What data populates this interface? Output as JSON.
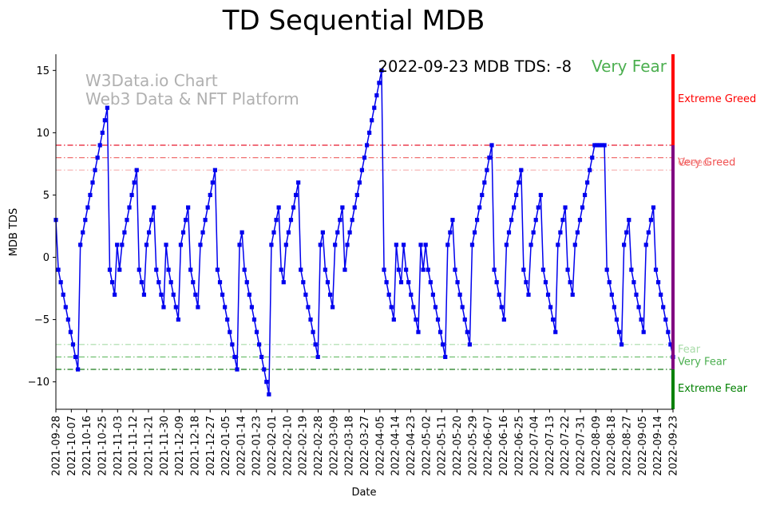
{
  "chart_data": {
    "type": "line",
    "title": "TD Sequential MDB",
    "xlabel": "Date",
    "ylabel": "MDB TDS",
    "ylim": [
      -12.2,
      16.3
    ],
    "yticks": [
      -10,
      -5,
      0,
      5,
      10,
      15
    ],
    "xticks": [
      "2021-09-28",
      "2021-10-07",
      "2021-10-16",
      "2021-10-25",
      "2021-11-03",
      "2021-11-12",
      "2021-11-21",
      "2021-11-30",
      "2021-12-09",
      "2021-12-18",
      "2021-12-27",
      "2022-01-05",
      "2022-01-14",
      "2022-01-23",
      "2022-02-01",
      "2022-02-10",
      "2022-02-19",
      "2022-02-28",
      "2022-03-09",
      "2022-03-18",
      "2022-03-27",
      "2022-04-05",
      "2022-04-14",
      "2022-04-23",
      "2022-05-02",
      "2022-05-11",
      "2022-05-20",
      "2022-05-29",
      "2022-06-07",
      "2022-06-16",
      "2022-06-25",
      "2022-07-04",
      "2022-07-13",
      "2022-07-22",
      "2022-07-31",
      "2022-08-09",
      "2022-08-18",
      "2022-08-27",
      "2022-09-05",
      "2022-09-14",
      "2022-09-23"
    ],
    "watermark": [
      "W3Data.io Chart",
      "Web3 Data & NFT Platform"
    ],
    "annotation": {
      "text": "2022-09-23 MDB TDS: -8",
      "status": "Very Fear",
      "status_color": "#4caf50"
    },
    "series": [
      {
        "name": "MDB TDS",
        "color": "#0000ee",
        "values": [
          3,
          -1,
          -2,
          -3,
          -4,
          -5,
          -6,
          -7,
          -8,
          -9,
          1,
          2,
          3,
          4,
          5,
          6,
          7,
          8,
          9,
          10,
          11,
          12,
          -1,
          -2,
          -3,
          1,
          -1,
          1,
          2,
          3,
          4,
          5,
          6,
          7,
          -1,
          -2,
          -3,
          1,
          2,
          3,
          4,
          -1,
          -2,
          -3,
          -4,
          1,
          -1,
          -2,
          -3,
          -4,
          -5,
          1,
          2,
          3,
          4,
          -1,
          -2,
          -3,
          -4,
          1,
          2,
          3,
          4,
          5,
          6,
          7,
          -1,
          -2,
          -3,
          -4,
          -5,
          -6,
          -7,
          -8,
          -9,
          1,
          2,
          -1,
          -2,
          -3,
          -4,
          -5,
          -6,
          -7,
          -8,
          -9,
          -10,
          -11,
          1,
          2,
          3,
          4,
          -1,
          -2,
          1,
          2,
          3,
          4,
          5,
          6,
          -1,
          -2,
          -3,
          -4,
          -5,
          -6,
          -7,
          -8,
          1,
          2,
          -1,
          -2,
          -3,
          -4,
          1,
          2,
          3,
          4,
          -1,
          1,
          2,
          3,
          4,
          5,
          6,
          7,
          8,
          9,
          10,
          11,
          12,
          13,
          14,
          15,
          -1,
          -2,
          -3,
          -4,
          -5,
          1,
          -1,
          -2,
          1,
          -1,
          -2,
          -3,
          -4,
          -5,
          -6,
          1,
          -1,
          1,
          -1,
          -2,
          -3,
          -4,
          -5,
          -6,
          -7,
          -8,
          1,
          2,
          3,
          -1,
          -2,
          -3,
          -4,
          -5,
          -6,
          -7,
          1,
          2,
          3,
          4,
          5,
          6,
          7,
          8,
          9,
          -1,
          -2,
          -3,
          -4,
          -5,
          1,
          2,
          3,
          4,
          5,
          6,
          7,
          -1,
          -2,
          -3,
          1,
          2,
          3,
          4,
          5,
          -1,
          -2,
          -3,
          -4,
          -5,
          -6,
          1,
          2,
          3,
          4,
          -1,
          -2,
          -3,
          1,
          2,
          3,
          4,
          5,
          6,
          7,
          8,
          9,
          9,
          9,
          9,
          9,
          -1,
          -2,
          -3,
          -4,
          -5,
          -6,
          -7,
          1,
          2,
          3,
          -1,
          -2,
          -3,
          -4,
          -5,
          -6,
          1,
          2,
          3,
          4,
          -1,
          -2,
          -3,
          -4,
          -5,
          -6,
          -7,
          -8
        ]
      }
    ],
    "thresholds": [
      {
        "label": "Extreme Greed",
        "value": 9,
        "line_color": "#e8192c",
        "label_color": "#ff0000",
        "style": "dashdot"
      },
      {
        "label": "Very Greed",
        "value": 8,
        "line_color": "#f07070",
        "label_color": "#f05050",
        "style": "dashdot"
      },
      {
        "label": "Greed",
        "value": 7,
        "line_color": "#f5b0b0",
        "label_color": "#f59a9a",
        "style": "dashdot"
      },
      {
        "label": "Fear",
        "value": -7,
        "line_color": "#a8dca8",
        "label_color": "#a8dca8",
        "style": "dashdot"
      },
      {
        "label": "Very Fear",
        "value": -8,
        "line_color": "#66bb66",
        "label_color": "#4caf50",
        "style": "dashdot"
      },
      {
        "label": "Extreme Fear",
        "value": -9,
        "line_color": "#1b7a1b",
        "label_color": "#008000",
        "style": "dashdot"
      }
    ],
    "side_bar": [
      {
        "from": 9,
        "to": 16.3,
        "color": "#ff0000"
      },
      {
        "from": -9,
        "to": 9,
        "color": "#800080"
      },
      {
        "from": -12.2,
        "to": -9,
        "color": "#008000"
      }
    ]
  }
}
